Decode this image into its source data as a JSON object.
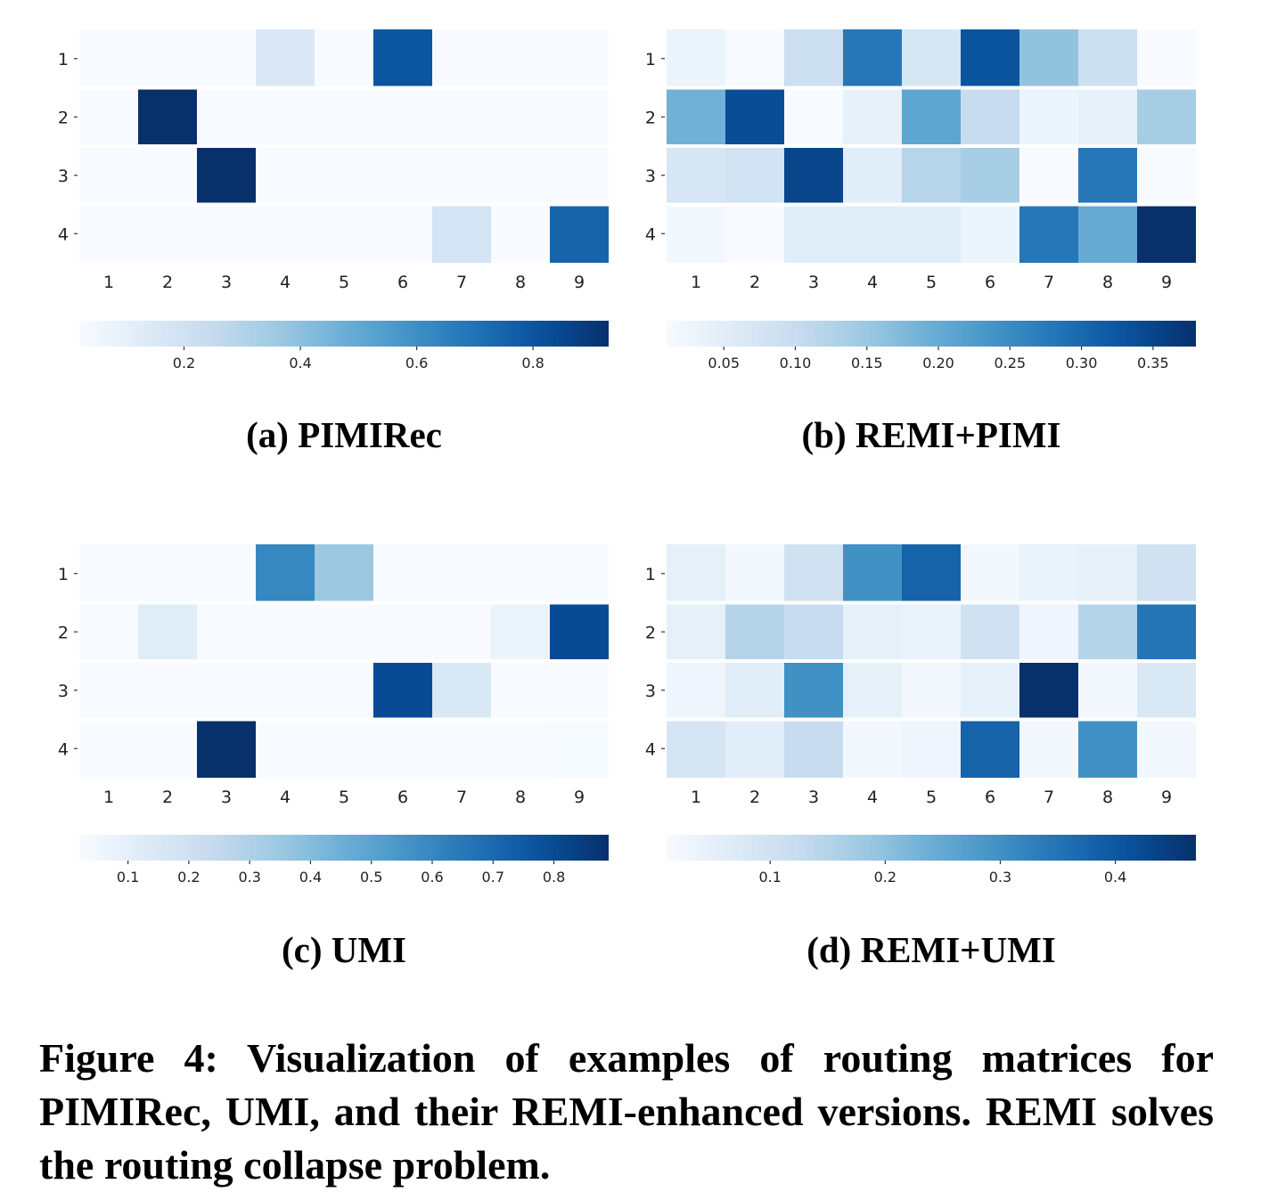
{
  "chart_data": [
    {
      "type": "heatmap",
      "caption": "(a) PIMIRec",
      "row_labels": [
        "1",
        "2",
        "3",
        "4"
      ],
      "col_labels": [
        "1",
        "2",
        "3",
        "4",
        "5",
        "6",
        "7",
        "8",
        "9"
      ],
      "values": [
        [
          0.02,
          0.02,
          0.02,
          0.15,
          0.02,
          0.8,
          0.02,
          0.02,
          0.02
        ],
        [
          0.02,
          0.93,
          0.02,
          0.02,
          0.02,
          0.02,
          0.02,
          0.02,
          0.02
        ],
        [
          0.02,
          0.02,
          0.93,
          0.02,
          0.02,
          0.02,
          0.02,
          0.02,
          0.02
        ],
        [
          0.02,
          0.02,
          0.02,
          0.02,
          0.02,
          0.02,
          0.18,
          0.02,
          0.75
        ]
      ],
      "vmin": 0.02,
      "vmax": 0.93,
      "colorbar_ticks": [
        0.2,
        0.4,
        0.6,
        0.8
      ],
      "colorbar_tick_labels": [
        "0.2",
        "0.4",
        "0.6",
        "0.8"
      ],
      "colormap": "Blues"
    },
    {
      "type": "heatmap",
      "caption": "(b) REMI+PIMI",
      "row_labels": [
        "1",
        "2",
        "3",
        "4"
      ],
      "col_labels": [
        "1",
        "2",
        "3",
        "4",
        "5",
        "6",
        "7",
        "8",
        "9"
      ],
      "values": [
        [
          0.03,
          0.01,
          0.09,
          0.28,
          0.07,
          0.33,
          0.16,
          0.09,
          0.01
        ],
        [
          0.19,
          0.34,
          0.01,
          0.04,
          0.21,
          0.1,
          0.03,
          0.04,
          0.14
        ],
        [
          0.07,
          0.08,
          0.35,
          0.05,
          0.12,
          0.14,
          0.01,
          0.28,
          0.01
        ],
        [
          0.02,
          0.01,
          0.05,
          0.05,
          0.05,
          0.03,
          0.28,
          0.2,
          0.38
        ]
      ],
      "vmin": 0.01,
      "vmax": 0.38,
      "colorbar_ticks": [
        0.05,
        0.1,
        0.15,
        0.2,
        0.25,
        0.3,
        0.35
      ],
      "colorbar_tick_labels": [
        "0.05",
        "0.10",
        "0.15",
        "0.20",
        "0.25",
        "0.30",
        "0.35"
      ],
      "colormap": "Blues"
    },
    {
      "type": "heatmap",
      "caption": "(c) UMI",
      "row_labels": [
        "1",
        "2",
        "3",
        "4"
      ],
      "col_labels": [
        "1",
        "2",
        "3",
        "4",
        "5",
        "6",
        "7",
        "8",
        "9"
      ],
      "values": [
        [
          0.02,
          0.02,
          0.02,
          0.6,
          0.35,
          0.02,
          0.02,
          0.02,
          0.02
        ],
        [
          0.02,
          0.12,
          0.02,
          0.02,
          0.02,
          0.02,
          0.02,
          0.07,
          0.8
        ],
        [
          0.02,
          0.02,
          0.02,
          0.02,
          0.02,
          0.8,
          0.15,
          0.02,
          0.02
        ],
        [
          0.02,
          0.02,
          0.89,
          0.02,
          0.02,
          0.02,
          0.02,
          0.02,
          0.03
        ]
      ],
      "vmin": 0.02,
      "vmax": 0.89,
      "colorbar_ticks": [
        0.1,
        0.2,
        0.3,
        0.4,
        0.5,
        0.6,
        0.7,
        0.8
      ],
      "colorbar_tick_labels": [
        "0.1",
        "0.2",
        "0.3",
        "0.4",
        "0.5",
        "0.6",
        "0.7",
        "0.8"
      ],
      "colormap": "Blues"
    },
    {
      "type": "heatmap",
      "caption": "(d) REMI+UMI",
      "row_labels": [
        "1",
        "2",
        "3",
        "4"
      ],
      "col_labels": [
        "1",
        "2",
        "3",
        "4",
        "5",
        "6",
        "7",
        "8",
        "9"
      ],
      "values": [
        [
          0.05,
          0.02,
          0.1,
          0.3,
          0.38,
          0.02,
          0.04,
          0.05,
          0.1
        ],
        [
          0.05,
          0.15,
          0.12,
          0.05,
          0.04,
          0.1,
          0.03,
          0.15,
          0.35
        ],
        [
          0.03,
          0.06,
          0.3,
          0.05,
          0.02,
          0.05,
          0.47,
          0.02,
          0.08
        ],
        [
          0.09,
          0.06,
          0.12,
          0.02,
          0.03,
          0.38,
          0.02,
          0.3,
          0.02
        ]
      ],
      "vmin": 0.01,
      "vmax": 0.47,
      "colorbar_ticks": [
        0.1,
        0.2,
        0.3,
        0.4
      ],
      "colorbar_tick_labels": [
        "0.1",
        "0.2",
        "0.3",
        "0.4"
      ],
      "colormap": "Blues"
    }
  ],
  "figure_caption": "Figure 4: Visualization of examples of routing matrices for PIMIRec, UMI, and their REMI-enhanced versions. REMI solves the routing collapse problem."
}
